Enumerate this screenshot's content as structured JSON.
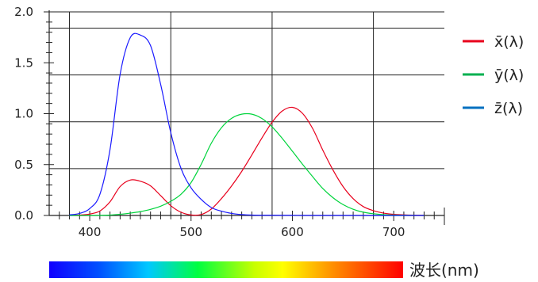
{
  "chart_data": {
    "type": "line",
    "xlabel": "波长(nm)",
    "ylabel": "",
    "xlim": [
      360,
      750
    ],
    "ylim": [
      0,
      2.0
    ],
    "x_ticks": [
      400,
      500,
      600,
      700
    ],
    "y_ticks": [
      0.0,
      0.5,
      1.0,
      1.5,
      2.0
    ],
    "x_tick_labels": [
      "400",
      "500",
      "600",
      "700"
    ],
    "y_tick_labels": [
      "0.0",
      "0.5",
      "1.0",
      "1.5",
      "2.0"
    ],
    "grid": true,
    "grid_x": [
      380,
      480,
      580,
      680
    ],
    "grid_y": [
      0.46,
      0.92,
      1.38,
      1.84
    ],
    "legend_position": "right",
    "series": [
      {
        "name": "x̄(λ)",
        "color": "#e8001c",
        "x": [
          380,
          390,
          400,
          410,
          420,
          430,
          440,
          450,
          460,
          470,
          480,
          490,
          500,
          510,
          520,
          530,
          540,
          550,
          560,
          570,
          580,
          590,
          600,
          610,
          620,
          630,
          640,
          650,
          660,
          670,
          680,
          690,
          700,
          710,
          720,
          730
        ],
        "y": [
          0.001,
          0.004,
          0.014,
          0.044,
          0.134,
          0.284,
          0.348,
          0.336,
          0.291,
          0.195,
          0.096,
          0.032,
          0.005,
          0.009,
          0.063,
          0.166,
          0.29,
          0.433,
          0.595,
          0.762,
          0.916,
          1.026,
          1.062,
          1.003,
          0.854,
          0.642,
          0.448,
          0.284,
          0.165,
          0.087,
          0.047,
          0.023,
          0.011,
          0.006,
          0.003,
          0.001
        ]
      },
      {
        "name": "ȳ(λ)",
        "color": "#00d43c",
        "x": [
          380,
          390,
          400,
          410,
          420,
          430,
          440,
          450,
          460,
          470,
          480,
          490,
          500,
          510,
          520,
          530,
          540,
          550,
          560,
          570,
          580,
          590,
          600,
          610,
          620,
          630,
          640,
          650,
          660,
          670,
          680,
          690,
          700,
          710,
          720,
          730
        ],
        "y": [
          0.0,
          0.0,
          0.0,
          0.001,
          0.004,
          0.012,
          0.023,
          0.038,
          0.06,
          0.091,
          0.139,
          0.208,
          0.323,
          0.503,
          0.71,
          0.862,
          0.954,
          0.995,
          0.995,
          0.952,
          0.87,
          0.757,
          0.631,
          0.503,
          0.381,
          0.265,
          0.175,
          0.107,
          0.061,
          0.032,
          0.017,
          0.008,
          0.004,
          0.002,
          0.001,
          0.0
        ]
      },
      {
        "name": "z̄(λ)",
        "color": "#1a1aff",
        "x": [
          380,
          390,
          400,
          410,
          420,
          430,
          440,
          450,
          460,
          470,
          480,
          490,
          500,
          510,
          520,
          530,
          540,
          550,
          560,
          570,
          580,
          590,
          600,
          610,
          620,
          630,
          640,
          650,
          660,
          670,
          680,
          690,
          700,
          710,
          720,
          730
        ],
        "y": [
          0.006,
          0.02,
          0.068,
          0.207,
          0.646,
          1.386,
          1.747,
          1.772,
          1.669,
          1.288,
          0.813,
          0.465,
          0.272,
          0.158,
          0.078,
          0.042,
          0.02,
          0.009,
          0.004,
          0.002,
          0.002,
          0.001,
          0.001,
          0.0,
          0.0,
          0.0,
          0.0,
          0.0,
          0.0,
          0.0,
          0.0,
          0.0,
          0.0,
          0.0,
          0.0,
          0.0
        ]
      }
    ],
    "legend_colors": [
      "#e8001c",
      "#00b050",
      "#0070c0"
    ]
  }
}
